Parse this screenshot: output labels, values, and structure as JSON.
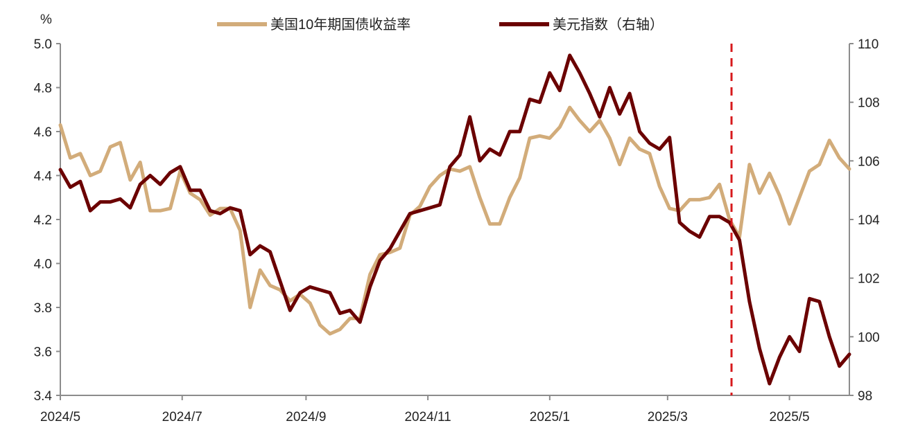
{
  "chart_data": {
    "type": "line",
    "title": "",
    "y_left_unit": "%",
    "ylim_left": [
      3.4,
      5.0
    ],
    "yticks_left": [
      "3.4",
      "3.6",
      "3.8",
      "4.0",
      "4.2",
      "4.4",
      "4.6",
      "4.8",
      "5.0"
    ],
    "ylim_right": [
      98,
      110
    ],
    "yticks_right": [
      "98",
      "100",
      "102",
      "104",
      "106",
      "108",
      "110"
    ],
    "xlim": [
      "2024-05-01",
      "2025-05-31"
    ],
    "xticks": [
      {
        "date": "2024-05-01",
        "label": "2024/5"
      },
      {
        "date": "2024-07-01",
        "label": "2024/7"
      },
      {
        "date": "2024-09-01",
        "label": "2024/9"
      },
      {
        "date": "2024-11-01",
        "label": "2024/11"
      },
      {
        "date": "2025-01-01",
        "label": "2025/1"
      },
      {
        "date": "2025-03-01",
        "label": "2025/3"
      },
      {
        "date": "2025-05-01",
        "label": "2025/5"
      }
    ],
    "grid": false,
    "legend_position": "top-center",
    "marker_line": {
      "date": "2025-04-02",
      "color": "#D7191C",
      "style": "dashed"
    },
    "x": [
      "2024-05-01",
      "2024-05-06",
      "2024-05-11",
      "2024-05-16",
      "2024-05-21",
      "2024-05-26",
      "2024-05-31",
      "2024-06-05",
      "2024-06-10",
      "2024-06-15",
      "2024-06-20",
      "2024-06-25",
      "2024-06-30",
      "2024-07-05",
      "2024-07-10",
      "2024-07-15",
      "2024-07-20",
      "2024-07-25",
      "2024-07-30",
      "2024-08-04",
      "2024-08-09",
      "2024-08-14",
      "2024-08-19",
      "2024-08-24",
      "2024-08-29",
      "2024-09-03",
      "2024-09-08",
      "2024-09-13",
      "2024-09-18",
      "2024-09-23",
      "2024-09-28",
      "2024-10-03",
      "2024-10-08",
      "2024-10-13",
      "2024-10-18",
      "2024-10-23",
      "2024-10-28",
      "2024-11-02",
      "2024-11-07",
      "2024-11-12",
      "2024-11-17",
      "2024-11-22",
      "2024-11-27",
      "2024-12-02",
      "2024-12-07",
      "2024-12-12",
      "2024-12-17",
      "2024-12-22",
      "2024-12-27",
      "2025-01-01",
      "2025-01-06",
      "2025-01-11",
      "2025-01-16",
      "2025-01-21",
      "2025-01-26",
      "2025-01-31",
      "2025-02-05",
      "2025-02-10",
      "2025-02-15",
      "2025-02-20",
      "2025-02-25",
      "2025-03-02",
      "2025-03-07",
      "2025-03-12",
      "2025-03-17",
      "2025-03-22",
      "2025-03-27",
      "2025-04-01",
      "2025-04-06",
      "2025-04-11",
      "2025-04-16",
      "2025-04-21",
      "2025-04-26",
      "2025-05-01",
      "2025-05-06",
      "2025-05-11",
      "2025-05-16",
      "2025-05-21",
      "2025-05-26",
      "2025-05-31"
    ],
    "series": [
      {
        "name": "美国10年期国债收益率",
        "axis": "left",
        "color": "#D2AC7A",
        "values": [
          4.63,
          4.48,
          4.5,
          4.4,
          4.42,
          4.53,
          4.55,
          4.38,
          4.46,
          4.24,
          4.24,
          4.25,
          4.42,
          4.32,
          4.29,
          4.22,
          4.25,
          4.25,
          4.15,
          3.8,
          3.97,
          3.9,
          3.88,
          3.83,
          3.86,
          3.82,
          3.72,
          3.68,
          3.7,
          3.75,
          3.75,
          3.95,
          4.04,
          4.05,
          4.07,
          4.22,
          4.26,
          4.35,
          4.4,
          4.43,
          4.42,
          4.44,
          4.3,
          4.18,
          4.18,
          4.3,
          4.39,
          4.57,
          4.58,
          4.57,
          4.62,
          4.71,
          4.65,
          4.6,
          4.65,
          4.57,
          4.45,
          4.57,
          4.52,
          4.5,
          4.35,
          4.25,
          4.24,
          4.29,
          4.29,
          4.3,
          4.36,
          4.2,
          4.12,
          4.45,
          4.32,
          4.41,
          4.31,
          4.18,
          4.3,
          4.42,
          4.45,
          4.56,
          4.48,
          4.43
        ]
      },
      {
        "name": "美元指数（右轴）",
        "axis": "right",
        "color": "#6B0000",
        "values": [
          105.7,
          105.1,
          105.3,
          104.3,
          104.6,
          104.6,
          104.7,
          104.4,
          105.2,
          105.5,
          105.2,
          105.6,
          105.8,
          105.0,
          105.0,
          104.3,
          104.2,
          104.4,
          104.3,
          102.8,
          103.1,
          102.9,
          101.9,
          100.9,
          101.5,
          101.7,
          101.6,
          101.5,
          100.8,
          100.9,
          100.5,
          101.7,
          102.6,
          103.0,
          103.6,
          104.2,
          104.3,
          104.4,
          104.5,
          105.8,
          106.2,
          107.5,
          106.0,
          106.4,
          106.2,
          107.0,
          107.0,
          108.1,
          108.0,
          109.0,
          108.4,
          109.6,
          109.0,
          108.3,
          107.5,
          108.5,
          107.6,
          108.3,
          107.0,
          106.6,
          106.4,
          106.8,
          103.9,
          103.6,
          103.4,
          104.1,
          104.1,
          103.9,
          103.3,
          101.2,
          99.6,
          98.4,
          99.3,
          100.0,
          99.5,
          101.3,
          101.2,
          100.0,
          99.0,
          99.4
        ]
      }
    ]
  }
}
